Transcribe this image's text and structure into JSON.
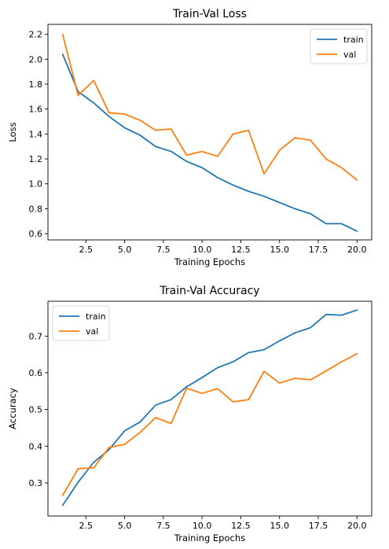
{
  "chart_data": [
    {
      "type": "line",
      "title": "Train-Val Loss",
      "xlabel": "Training Epochs",
      "ylabel": "Loss",
      "xlim": [
        0.05,
        20.95
      ],
      "ylim": [
        0.55,
        2.28
      ],
      "xticks": [
        2.5,
        5.0,
        7.5,
        10.0,
        12.5,
        15.0,
        17.5,
        20.0
      ],
      "xtick_labels": [
        "2.5",
        "5.0",
        "7.5",
        "10.0",
        "12.5",
        "15.0",
        "17.5",
        "20.0"
      ],
      "yticks": [
        0.6,
        0.8,
        1.0,
        1.2,
        1.4,
        1.6,
        1.8,
        2.0,
        2.2
      ],
      "ytick_labels": [
        "0.6",
        "0.8",
        "1.0",
        "1.2",
        "1.4",
        "1.6",
        "1.8",
        "2.0",
        "2.2"
      ],
      "legend_position": "top-right",
      "grid": false,
      "x": [
        1,
        2,
        3,
        4,
        5,
        6,
        7,
        8,
        9,
        10,
        11,
        12,
        13,
        14,
        15,
        16,
        17,
        18,
        19,
        20
      ],
      "series": [
        {
          "name": "train",
          "color": "#1f77b4",
          "values": [
            2.04,
            1.74,
            1.65,
            1.54,
            1.45,
            1.39,
            1.3,
            1.26,
            1.18,
            1.13,
            1.05,
            0.99,
            0.94,
            0.9,
            0.85,
            0.8,
            0.76,
            0.68,
            0.68,
            0.62
          ]
        },
        {
          "name": "val",
          "color": "#ff7f0e",
          "values": [
            2.2,
            1.71,
            1.83,
            1.57,
            1.56,
            1.51,
            1.43,
            1.44,
            1.23,
            1.26,
            1.22,
            1.4,
            1.43,
            1.08,
            1.27,
            1.37,
            1.35,
            1.2,
            1.13,
            1.03
          ]
        }
      ]
    },
    {
      "type": "line",
      "title": "Train-Val Accuracy",
      "xlabel": "Training Epochs",
      "ylabel": "Accuracy",
      "xlim": [
        0.05,
        20.95
      ],
      "ylim": [
        0.21,
        0.795
      ],
      "xticks": [
        2.5,
        5.0,
        7.5,
        10.0,
        12.5,
        15.0,
        17.5,
        20.0
      ],
      "xtick_labels": [
        "2.5",
        "5.0",
        "7.5",
        "10.0",
        "12.5",
        "15.0",
        "17.5",
        "20.0"
      ],
      "yticks": [
        0.3,
        0.4,
        0.5,
        0.6,
        0.7
      ],
      "ytick_labels": [
        "0.3",
        "0.4",
        "0.5",
        "0.6",
        "0.7"
      ],
      "legend_position": "top-left",
      "grid": false,
      "x": [
        1,
        2,
        3,
        4,
        5,
        6,
        7,
        8,
        9,
        10,
        11,
        12,
        13,
        14,
        15,
        16,
        17,
        18,
        19,
        20
      ],
      "series": [
        {
          "name": "train",
          "color": "#1f77b4",
          "values": [
            0.239,
            0.302,
            0.356,
            0.391,
            0.442,
            0.466,
            0.512,
            0.527,
            0.562,
            0.587,
            0.614,
            0.63,
            0.655,
            0.663,
            0.687,
            0.709,
            0.723,
            0.759,
            0.757,
            0.771
          ]
        },
        {
          "name": "val",
          "color": "#ff7f0e",
          "values": [
            0.266,
            0.339,
            0.341,
            0.397,
            0.405,
            0.438,
            0.478,
            0.462,
            0.558,
            0.544,
            0.557,
            0.521,
            0.527,
            0.604,
            0.572,
            0.585,
            0.581,
            0.605,
            0.63,
            0.652
          ]
        }
      ]
    }
  ]
}
